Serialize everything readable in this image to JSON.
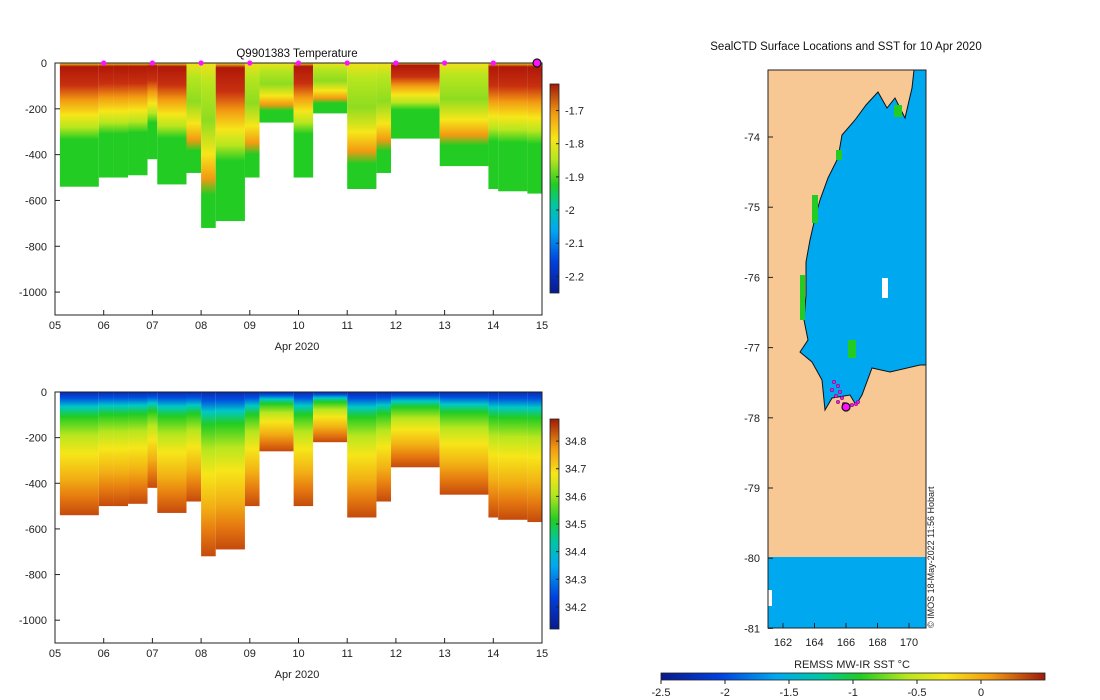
{
  "chart_data": [
    {
      "type": "heatmap",
      "name": "temperature-profile",
      "title": "Q9901383  Temperature",
      "xlabel": "Apr 2020",
      "x_ticks": [
        "05",
        "06",
        "07",
        "08",
        "09",
        "10",
        "11",
        "12",
        "13",
        "14",
        "15"
      ],
      "y_ticks": [
        "0",
        "-200",
        "-400",
        "-600",
        "-800",
        "-1000"
      ],
      "ylim": [
        -1100,
        0
      ],
      "colorbar_ticks": [
        "-1.7",
        "-1.8",
        "-1.9",
        "-2",
        "-2.1",
        "-2.2"
      ],
      "colorbar_range": [
        -2.25,
        -1.62
      ],
      "profile_depths": [
        540,
        500,
        500,
        490,
        420,
        530,
        480,
        720,
        690,
        500,
        260,
        500,
        220,
        550,
        480,
        330,
        450,
        550,
        560,
        570
      ],
      "profile_days": [
        5.1,
        5.9,
        6.2,
        6.5,
        6.9,
        7.1,
        7.7,
        8.0,
        8.3,
        8.9,
        9.2,
        9.9,
        10.3,
        11.0,
        11.6,
        11.9,
        12.9,
        13.9,
        14.1,
        14.7
      ]
    },
    {
      "type": "heatmap",
      "name": "salinity-profile",
      "title": "",
      "xlabel": "Apr 2020",
      "x_ticks": [
        "05",
        "06",
        "07",
        "08",
        "09",
        "10",
        "11",
        "12",
        "13",
        "14",
        "15"
      ],
      "y_ticks": [
        "0",
        "-200",
        "-400",
        "-600",
        "-800",
        "-1000"
      ],
      "ylim": [
        -1100,
        0
      ],
      "colorbar_ticks": [
        "34.8",
        "34.7",
        "34.6",
        "34.5",
        "34.4",
        "34.3",
        "34.2"
      ],
      "colorbar_range": [
        34.12,
        34.88
      ]
    },
    {
      "type": "heatmap",
      "name": "sst-map",
      "title": "SealCTD Surface Locations and SST for 10 Apr 2020",
      "xlabel": "REMSS MW-IR SST °C",
      "x_ticks": [
        "162",
        "164",
        "166",
        "168",
        "170"
      ],
      "y_ticks": [
        "-74",
        "-75",
        "-76",
        "-77",
        "-78",
        "-79",
        "-80",
        "-81"
      ],
      "colorbar_ticks": [
        "-2.5",
        "-2",
        "-1.5",
        "-1",
        "-0.5",
        "0"
      ],
      "colorbar_range": [
        -2.5,
        0.5
      ],
      "attribution": "© IMOS 18-May-2022 11:56 Hobart"
    }
  ]
}
